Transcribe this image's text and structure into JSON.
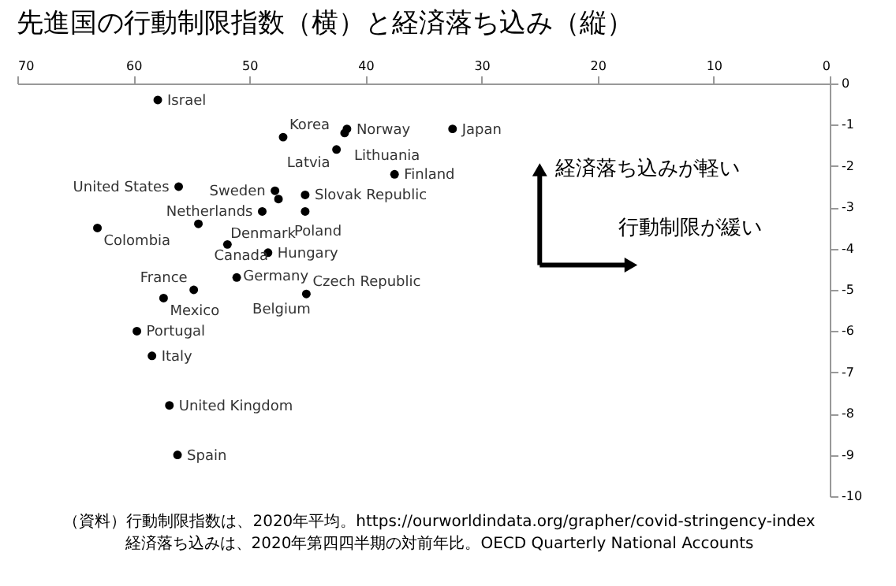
{
  "chart_data": {
    "type": "scatter",
    "title": "先進国の行動制限指数（横）と経済落ち込み（縦）",
    "x": [
      57.9,
      47.1,
      41.6,
      41.8,
      42.5,
      32.5,
      37.5,
      56.1,
      47.8,
      45.2,
      47.5,
      48.9,
      45.2,
      63.1,
      54.4,
      51.9,
      48.4,
      51.1,
      54.8,
      45.1,
      57.4,
      59.7,
      58.4,
      56.9,
      56.2
    ],
    "series": [
      {
        "color": "#000000",
        "values": [
          -0.4,
          -1.3,
          -1.1,
          -1.2,
          -1.6,
          -1.1,
          -2.2,
          -2.5,
          -2.6,
          -2.7,
          -2.8,
          -3.1,
          -3.1,
          -3.5,
          -3.4,
          -3.9,
          -4.1,
          -4.7,
          -5.0,
          -5.1,
          -5.2,
          -6.0,
          -6.6,
          -7.8,
          -9.0
        ]
      }
    ],
    "xlim": [
      70,
      0
    ],
    "xticks": [
      70,
      60,
      50,
      40,
      30,
      20,
      10,
      0
    ],
    "ylim": [
      -10,
      0
    ],
    "yticks": [
      0,
      -1,
      -2,
      -3,
      -4,
      -5,
      -6,
      -7,
      -8,
      -9,
      -10
    ],
    "grid": false,
    "marker": "circle",
    "annotations": [
      {
        "text": "Israel",
        "x": 57.9,
        "y": -0.4
      },
      {
        "text": "Korea",
        "x": 47.1,
        "y": -1.3
      },
      {
        "text": "Norway",
        "x": 41.6,
        "y": -1.1
      },
      {
        "text": "Lithuania",
        "x": 41.8,
        "y": -1.2
      },
      {
        "text": "Latvia",
        "x": 42.5,
        "y": -1.6
      },
      {
        "text": "Japan",
        "x": 32.5,
        "y": -1.1
      },
      {
        "text": "Finland",
        "x": 37.5,
        "y": -2.2
      },
      {
        "text": "United States",
        "x": 56.1,
        "y": -2.5
      },
      {
        "text": "Sweden",
        "x": 47.8,
        "y": -2.6
      },
      {
        "text": "Slovak Republic",
        "x": 45.2,
        "y": -2.7
      },
      {
        "text": "Poland",
        "x": 47.5,
        "y": -2.8
      },
      {
        "text": "Netherlands",
        "x": 48.9,
        "y": -3.1
      },
      {
        "text": "Denmark",
        "x": 45.2,
        "y": -3.1
      },
      {
        "text": "Colombia",
        "x": 63.1,
        "y": -3.5
      },
      {
        "text": "Canada",
        "x": 54.4,
        "y": -3.4
      },
      {
        "text": "Germany",
        "x": 51.9,
        "y": -3.9
      },
      {
        "text": "Hungary",
        "x": 48.4,
        "y": -4.1
      },
      {
        "text": "Belgium",
        "x": 51.1,
        "y": -4.7
      },
      {
        "text": "France",
        "x": 54.8,
        "y": -5.0
      },
      {
        "text": "Czech Republic",
        "x": 45.1,
        "y": -5.1
      },
      {
        "text": "Mexico",
        "x": 57.4,
        "y": -5.2
      },
      {
        "text": "Portugal",
        "x": 59.7,
        "y": -6.0
      },
      {
        "text": "Italy",
        "x": 58.4,
        "y": -6.6
      },
      {
        "text": "United Kingdom",
        "x": 56.9,
        "y": -7.8
      },
      {
        "text": "Spain",
        "x": 56.2,
        "y": -9.0
      },
      "経済落ち込みが軽い",
      "行動制限が緩い",
      "（資料）行動制限指数は、2020年平均。https://ourworldindata.org/grapher/covid-stringency-index",
      "経済落ち込みは、2020年第四四半期の対前年比。OECD Quarterly National Accounts"
    ]
  }
}
